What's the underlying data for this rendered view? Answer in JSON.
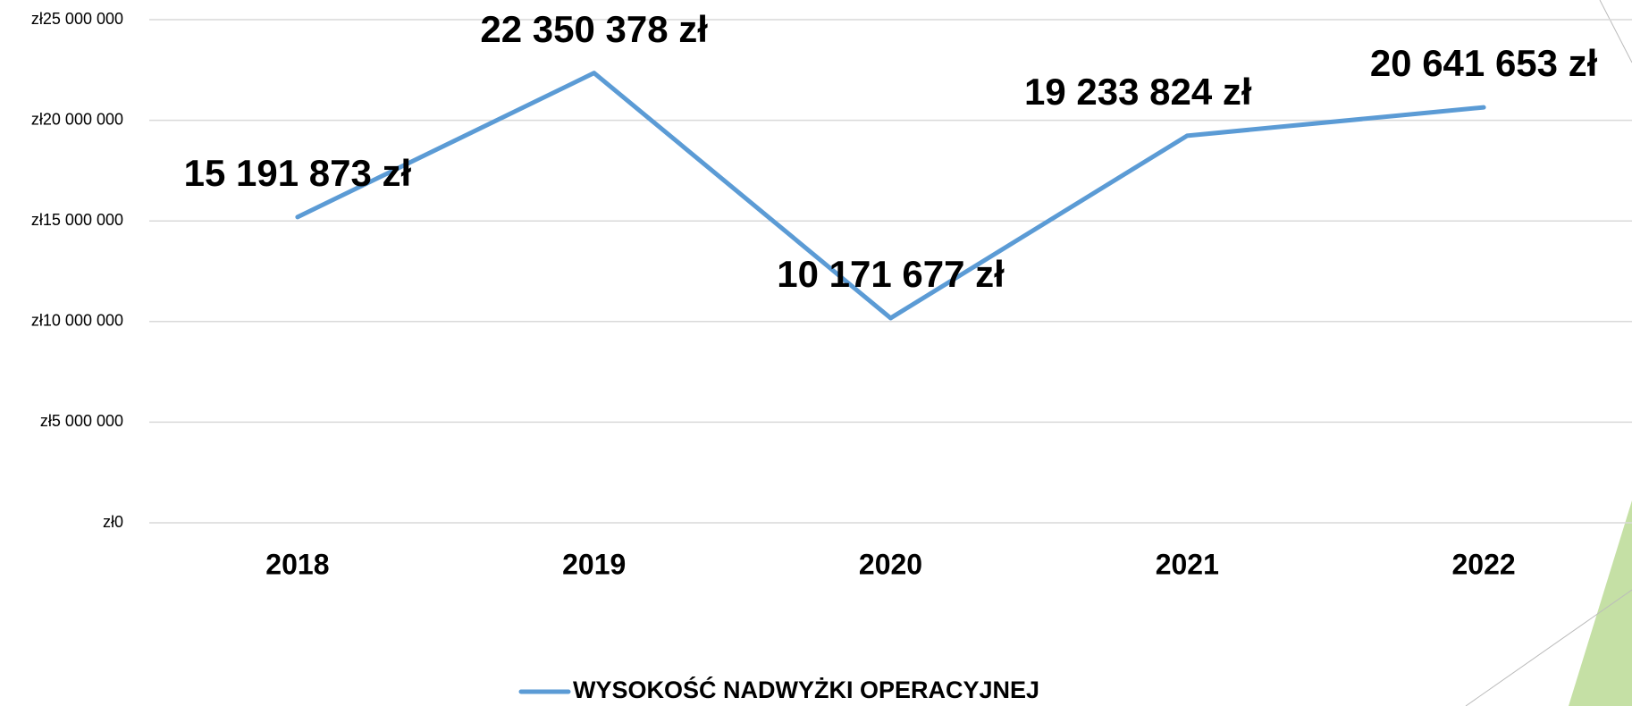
{
  "chart_data": {
    "type": "line",
    "categories": [
      "2018",
      "2019",
      "2020",
      "2021",
      "2022"
    ],
    "series": [
      {
        "name": "WYSOKOŚĆ NADWYŻKI OPERACYJNEJ",
        "color": "#5b9bd5",
        "values": [
          15191873,
          22350378,
          10171677,
          19233824,
          20641653
        ],
        "value_labels": [
          "15 191 873 zł",
          "22 350 378 zł",
          "10 171 677 zł",
          "19 233 824 zł",
          "20 641 653 zł"
        ],
        "value_label_colors": [
          "#000000",
          "#000000",
          "#000000",
          "#000000",
          "#ff0000"
        ]
      }
    ],
    "ylim": [
      0,
      25000000
    ],
    "yticks": [
      {
        "value": 0,
        "label": "zł0"
      },
      {
        "value": 5000000,
        "label": "zł5 000 000"
      },
      {
        "value": 10000000,
        "label": "zł10 000 000"
      },
      {
        "value": 15000000,
        "label": "zł15 000 000"
      },
      {
        "value": 20000000,
        "label": "zł20 000 000"
      },
      {
        "value": 25000000,
        "label": "zł25 000 000"
      }
    ],
    "grid": true,
    "legend": "bottom"
  }
}
